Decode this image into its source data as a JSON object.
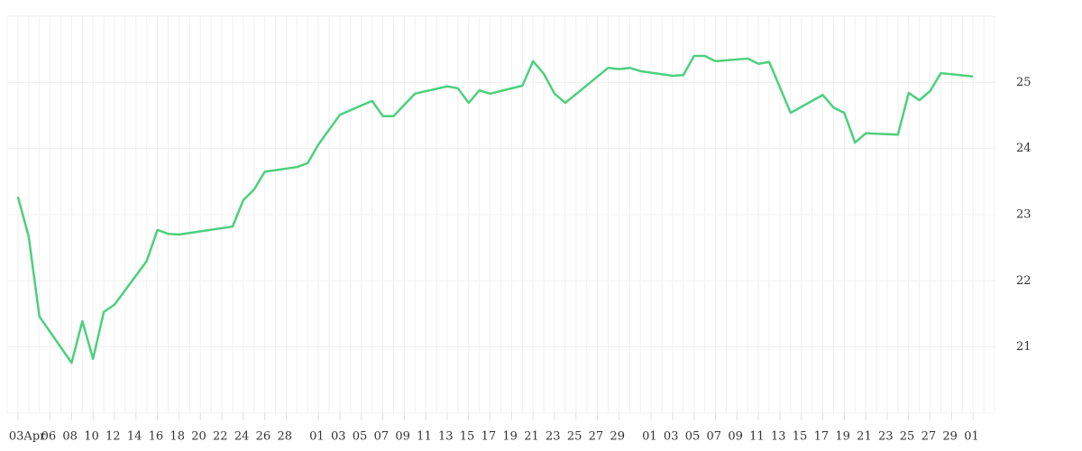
{
  "chart_data": {
    "type": "line",
    "x": [
      "04-03",
      "04-04",
      "04-05",
      "04-08",
      "04-09",
      "04-10",
      "04-11",
      "04-12",
      "04-15",
      "04-16",
      "04-17",
      "04-18",
      "04-23",
      "04-24",
      "04-25",
      "04-26",
      "04-29",
      "04-30",
      "05-01",
      "05-03",
      "05-06",
      "05-07",
      "05-08",
      "05-10",
      "05-13",
      "05-14",
      "05-15",
      "05-16",
      "05-17",
      "05-20",
      "05-21",
      "05-22",
      "05-23",
      "05-24",
      "05-28",
      "05-29",
      "05-30",
      "05-31",
      "06-03",
      "06-04",
      "06-05",
      "06-06",
      "06-07",
      "06-10",
      "06-11",
      "06-12",
      "06-14",
      "06-17",
      "06-18",
      "06-19",
      "06-20",
      "06-21",
      "06-24",
      "06-25",
      "06-26",
      "06-27",
      "06-28",
      "07-01"
    ],
    "series": [
      {
        "color": "#4cd07d",
        "values": [
          23.27,
          22.67,
          21.46,
          20.76,
          21.39,
          20.82,
          21.53,
          21.64,
          22.3,
          22.77,
          22.71,
          22.7,
          22.82,
          23.22,
          23.38,
          23.65,
          23.72,
          23.78,
          24.06,
          24.51,
          24.72,
          24.49,
          24.49,
          24.83,
          24.94,
          24.91,
          24.69,
          24.88,
          24.83,
          24.95,
          25.32,
          25.13,
          24.83,
          24.69,
          25.22,
          25.2,
          25.22,
          25.17,
          25.1,
          25.11,
          25.4,
          25.4,
          25.32,
          25.36,
          25.28,
          25.31,
          24.54,
          24.81,
          24.62,
          24.54,
          24.09,
          24.23,
          24.21,
          24.84,
          24.73,
          24.87,
          25.14,
          25.09
        ]
      }
    ],
    "xlim": [
      "04-02",
      "07-03"
    ],
    "xticks": [
      {
        "value": "04-03",
        "label": "03Apr"
      },
      {
        "value": "04-06",
        "label": "06"
      },
      {
        "value": "04-08",
        "label": "08"
      },
      {
        "value": "04-10",
        "label": "10"
      },
      {
        "value": "04-12",
        "label": "12"
      },
      {
        "value": "04-14",
        "label": "14"
      },
      {
        "value": "04-16",
        "label": "16"
      },
      {
        "value": "04-18",
        "label": "18"
      },
      {
        "value": "04-20",
        "label": "20"
      },
      {
        "value": "04-22",
        "label": "22"
      },
      {
        "value": "04-24",
        "label": "24"
      },
      {
        "value": "04-26",
        "label": "26"
      },
      {
        "value": "04-28",
        "label": "28"
      },
      {
        "value": "05-01",
        "label": "01"
      },
      {
        "value": "05-03",
        "label": "03"
      },
      {
        "value": "05-05",
        "label": "05"
      },
      {
        "value": "05-07",
        "label": "07"
      },
      {
        "value": "05-09",
        "label": "09"
      },
      {
        "value": "05-11",
        "label": "11"
      },
      {
        "value": "05-13",
        "label": "13"
      },
      {
        "value": "05-15",
        "label": "15"
      },
      {
        "value": "05-17",
        "label": "17"
      },
      {
        "value": "05-19",
        "label": "19"
      },
      {
        "value": "05-21",
        "label": "21"
      },
      {
        "value": "05-23",
        "label": "23"
      },
      {
        "value": "05-25",
        "label": "25"
      },
      {
        "value": "05-27",
        "label": "27"
      },
      {
        "value": "05-29",
        "label": "29"
      },
      {
        "value": "06-01",
        "label": "01"
      },
      {
        "value": "06-03",
        "label": "03"
      },
      {
        "value": "06-05",
        "label": "05"
      },
      {
        "value": "06-07",
        "label": "07"
      },
      {
        "value": "06-09",
        "label": "09"
      },
      {
        "value": "06-11",
        "label": "11"
      },
      {
        "value": "06-13",
        "label": "13"
      },
      {
        "value": "06-15",
        "label": "15"
      },
      {
        "value": "06-17",
        "label": "17"
      },
      {
        "value": "06-19",
        "label": "19"
      },
      {
        "value": "06-21",
        "label": "21"
      },
      {
        "value": "06-23",
        "label": "23"
      },
      {
        "value": "06-25",
        "label": "25"
      },
      {
        "value": "06-27",
        "label": "27"
      },
      {
        "value": "06-29",
        "label": "29"
      },
      {
        "value": "07-01",
        "label": "01"
      }
    ],
    "ylim": [
      20,
      26
    ],
    "yticks": [
      21,
      22,
      23,
      24,
      25
    ],
    "grid": true
  }
}
